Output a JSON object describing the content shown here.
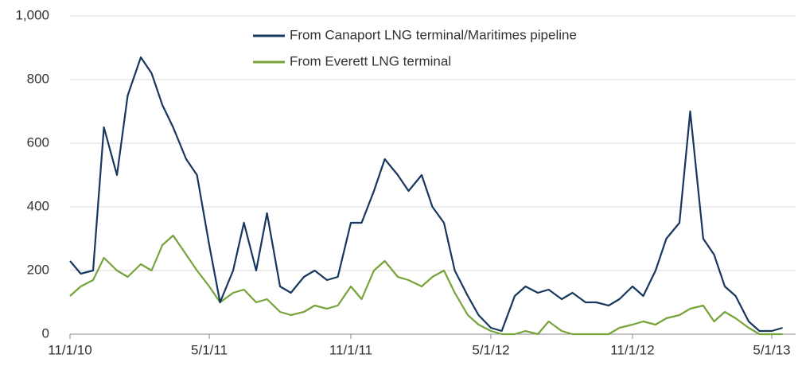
{
  "chart_data": {
    "type": "line",
    "x": [
      "11/1/10",
      "11/15/10",
      "12/1/10",
      "12/15/10",
      "1/1/11",
      "1/15/11",
      "2/1/11",
      "2/15/11",
      "3/1/11",
      "3/15/11",
      "4/1/11",
      "4/15/11",
      "5/1/11",
      "5/15/11",
      "6/1/11",
      "6/15/11",
      "7/1/11",
      "7/15/11",
      "8/1/11",
      "8/15/11",
      "9/1/11",
      "9/15/11",
      "10/1/11",
      "10/15/11",
      "11/1/11",
      "11/15/11",
      "12/1/11",
      "12/15/11",
      "1/1/12",
      "1/15/12",
      "2/1/12",
      "2/15/12",
      "3/1/12",
      "3/15/12",
      "4/1/12",
      "4/15/12",
      "5/1/12",
      "5/15/12",
      "6/1/12",
      "6/15/12",
      "7/1/12",
      "7/15/12",
      "8/1/12",
      "8/15/12",
      "9/1/12",
      "9/15/12",
      "10/1/12",
      "10/15/12",
      "11/1/12",
      "11/15/12",
      "12/1/12",
      "12/15/12",
      "1/1/13",
      "1/15/13",
      "2/1/13",
      "2/15/13",
      "3/1/13",
      "3/15/13",
      "4/1/13",
      "4/15/13",
      "5/1/13",
      "5/15/13"
    ],
    "series": [
      {
        "name": "From Canaport LNG terminal/Maritimes pipeline",
        "color": "#17375e",
        "values": [
          230,
          190,
          200,
          650,
          500,
          750,
          870,
          820,
          720,
          650,
          550,
          500,
          280,
          100,
          200,
          350,
          200,
          380,
          150,
          130,
          180,
          200,
          170,
          180,
          350,
          350,
          450,
          550,
          500,
          450,
          500,
          400,
          350,
          200,
          120,
          60,
          20,
          10,
          120,
          150,
          130,
          140,
          110,
          130,
          100,
          100,
          90,
          110,
          150,
          120,
          200,
          300,
          350,
          700,
          300,
          250,
          150,
          120,
          40,
          10,
          10,
          20
        ]
      },
      {
        "name": "From Everett LNG terminal",
        "color": "#77a33a",
        "values": [
          120,
          150,
          170,
          240,
          200,
          180,
          220,
          200,
          280,
          310,
          250,
          200,
          150,
          100,
          130,
          140,
          100,
          110,
          70,
          60,
          70,
          90,
          80,
          90,
          150,
          110,
          200,
          230,
          180,
          170,
          150,
          180,
          200,
          130,
          60,
          30,
          10,
          0,
          0,
          10,
          0,
          40,
          10,
          0,
          0,
          0,
          0,
          20,
          30,
          40,
          30,
          50,
          60,
          80,
          90,
          40,
          70,
          50,
          20,
          0,
          0,
          0
        ]
      }
    ],
    "xlim": [
      "11/1/10",
      "6/1/13"
    ],
    "xticks": [
      "11/1/10",
      "5/1/11",
      "11/1/11",
      "5/1/12",
      "11/1/12",
      "5/1/13"
    ],
    "ylim": [
      0,
      1000
    ],
    "yticks": [
      0,
      200,
      400,
      600,
      800,
      {
        "value": 1000,
        "label": "1,000"
      }
    ],
    "grid": true
  }
}
